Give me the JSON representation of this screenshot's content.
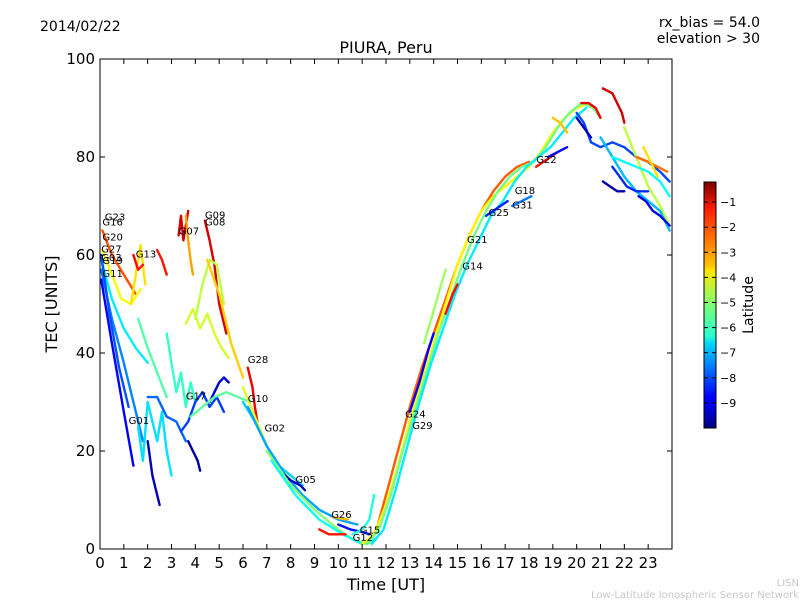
{
  "header": {
    "date": "2014/02/22",
    "bias": "rx_bias = 54.0",
    "elevation": "elevation > 30"
  },
  "footer": {
    "line1": "LISN",
    "line2": "Low-Latitude Ionospheric Sensor Network"
  },
  "chart_data": {
    "type": "line",
    "title": "PIURA, Peru",
    "xlabel": "Time [UT]",
    "ylabel": "TEC [UNITS]",
    "xlim": [
      0,
      24
    ],
    "ylim": [
      0,
      100
    ],
    "xticks": [
      "0",
      "1",
      "2",
      "3",
      "4",
      "5",
      "6",
      "7",
      "8",
      "9",
      "10",
      "11",
      "12",
      "13",
      "14",
      "15",
      "16",
      "17",
      "18",
      "19",
      "20",
      "21",
      "22",
      "23"
    ],
    "yticks": [
      "0",
      "20",
      "40",
      "60",
      "80",
      "100"
    ],
    "grid": false,
    "colorbar": {
      "label": "Latitude",
      "ticks": [
        "−1",
        "−2",
        "−3",
        "−4",
        "−5",
        "−6",
        "−7",
        "−8",
        "−9"
      ],
      "range": [
        -10,
        -0.2
      ],
      "colormap": "jet"
    },
    "satellite_labels": [
      {
        "name": "G23",
        "x": 0.2,
        "y": 67
      },
      {
        "name": "G16",
        "x": 0.1,
        "y": 66
      },
      {
        "name": "G20",
        "x": 0.1,
        "y": 63
      },
      {
        "name": "G27",
        "x": 0.05,
        "y": 60.5
      },
      {
        "name": "G13",
        "x": 1.5,
        "y": 59.5
      },
      {
        "name": "G03",
        "x": 0.05,
        "y": 58.8
      },
      {
        "name": "G19",
        "x": 0.1,
        "y": 58.2
      },
      {
        "name": "G11",
        "x": 0.1,
        "y": 55.5
      },
      {
        "name": "G09",
        "x": 4.4,
        "y": 67.5
      },
      {
        "name": "G08",
        "x": 4.4,
        "y": 66
      },
      {
        "name": "G07",
        "x": 3.3,
        "y": 64.2
      },
      {
        "name": "G28",
        "x": 6.2,
        "y": 38
      },
      {
        "name": "G17",
        "x": 3.6,
        "y": 30.5
      },
      {
        "name": "G10",
        "x": 6.2,
        "y": 30
      },
      {
        "name": "G01",
        "x": 1.2,
        "y": 25.5
      },
      {
        "name": "G02",
        "x": 6.9,
        "y": 24
      },
      {
        "name": "G05",
        "x": 8.2,
        "y": 13.5
      },
      {
        "name": "G26",
        "x": 9.7,
        "y": 6.3
      },
      {
        "name": "G15",
        "x": 10.9,
        "y": 3.2
      },
      {
        "name": "G12",
        "x": 10.6,
        "y": 1.6
      },
      {
        "name": "G24",
        "x": 12.8,
        "y": 26.8
      },
      {
        "name": "G29",
        "x": 13.1,
        "y": 24.5
      },
      {
        "name": "G14",
        "x": 15.2,
        "y": 57
      },
      {
        "name": "G21",
        "x": 15.4,
        "y": 62.5
      },
      {
        "name": "G25",
        "x": 16.3,
        "y": 68
      },
      {
        "name": "G31",
        "x": 17.3,
        "y": 69.5
      },
      {
        "name": "G18",
        "x": 17.4,
        "y": 72.5
      },
      {
        "name": "G22",
        "x": 18.3,
        "y": 78.8
      }
    ],
    "series": [
      {
        "lat": -2.2,
        "x": [
          0.1,
          0.5,
          1.0,
          1.5
        ],
        "y": [
          65,
          60,
          56,
          52
        ]
      },
      {
        "lat": -4.0,
        "x": [
          0.1,
          0.5,
          0.9,
          1.3,
          1.7
        ],
        "y": [
          61,
          56,
          51,
          50,
          53
        ]
      },
      {
        "lat": -6.5,
        "x": [
          0.05,
          0.5,
          1.0,
          1.5,
          2.0
        ],
        "y": [
          59,
          51,
          45,
          41,
          38
        ]
      },
      {
        "lat": -7.5,
        "x": [
          0.05,
          0.5,
          1.0,
          1.5,
          1.8
        ],
        "y": [
          57,
          47,
          38,
          28,
          22
        ]
      },
      {
        "lat": -8.8,
        "x": [
          0.05,
          0.5,
          1.0,
          1.4
        ],
        "y": [
          55,
          42,
          28,
          17
        ]
      },
      {
        "lat": -8.0,
        "x": [
          0.05,
          0.4,
          0.8,
          1.2
        ],
        "y": [
          60,
          48,
          37,
          29
        ]
      },
      {
        "lat": -3.6,
        "x": [
          1.3,
          1.5,
          1.7,
          1.9
        ],
        "y": [
          50,
          56,
          62,
          54
        ]
      },
      {
        "lat": -1.5,
        "x": [
          1.4,
          1.6,
          1.8
        ],
        "y": [
          60,
          57,
          58
        ]
      },
      {
        "lat": -1.6,
        "x": [
          2.4,
          2.6,
          2.8
        ],
        "y": [
          61,
          59,
          56
        ]
      },
      {
        "lat": -5.5,
        "x": [
          1.6,
          2.0,
          2.4,
          2.8
        ],
        "y": [
          47,
          41,
          36,
          31
        ]
      },
      {
        "lat": -6.6,
        "x": [
          1.6,
          1.8,
          2.0,
          2.2,
          2.4,
          2.6,
          2.8,
          3.0
        ],
        "y": [
          25,
          18,
          30,
          26,
          22,
          28,
          20,
          15
        ]
      },
      {
        "lat": -9.5,
        "x": [
          2.0,
          2.2,
          2.4,
          2.5
        ],
        "y": [
          22,
          15,
          11,
          9
        ]
      },
      {
        "lat": -7.8,
        "x": [
          2.0,
          2.4,
          2.8,
          3.2,
          3.6
        ],
        "y": [
          31,
          31,
          27,
          26,
          22
        ]
      },
      {
        "lat": -5.8,
        "x": [
          2.8,
          3.0,
          3.2,
          3.4,
          3.6,
          3.8,
          4.0
        ],
        "y": [
          44,
          38,
          32,
          36,
          29,
          34,
          30
        ]
      },
      {
        "lat": -1.0,
        "x": [
          3.3,
          3.4,
          3.5,
          3.6,
          3.7
        ],
        "y": [
          64,
          68,
          63,
          66,
          69
        ]
      },
      {
        "lat": -3.0,
        "x": [
          3.6,
          3.7,
          3.8,
          3.9
        ],
        "y": [
          68,
          63,
          59,
          56
        ]
      },
      {
        "lat": -4.3,
        "x": [
          3.6,
          3.9,
          4.2,
          4.5,
          4.8,
          5.1,
          5.4
        ],
        "y": [
          46,
          49,
          45,
          48,
          44,
          41,
          39
        ]
      },
      {
        "lat": -8.2,
        "x": [
          3.4,
          3.7,
          4.0,
          4.3,
          4.6,
          4.9,
          5.2
        ],
        "y": [
          24,
          26,
          30,
          32,
          29,
          31,
          28
        ]
      },
      {
        "lat": -9.7,
        "x": [
          3.7,
          3.9,
          4.1,
          4.2
        ],
        "y": [
          22,
          20,
          18,
          16
        ]
      },
      {
        "lat": -9.2,
        "x": [
          4.6,
          4.8,
          5.0,
          5.2,
          5.4
        ],
        "y": [
          30,
          32,
          34,
          35,
          34
        ]
      },
      {
        "lat": -1.0,
        "x": [
          4.4,
          4.6,
          4.8,
          5.0,
          5.3
        ],
        "y": [
          67,
          63,
          58,
          50,
          44
        ]
      },
      {
        "lat": -4.5,
        "x": [
          4.0,
          4.3,
          4.6,
          4.9,
          5.2
        ],
        "y": [
          47,
          54,
          59,
          58,
          50
        ]
      },
      {
        "lat": -3.4,
        "x": [
          4.5,
          5.0,
          5.5,
          6.0
        ],
        "y": [
          59,
          52,
          42,
          35
        ]
      },
      {
        "lat": -5.4,
        "x": [
          3.8,
          4.3,
          4.8,
          5.3,
          5.8,
          6.3
        ],
        "y": [
          27,
          29,
          31,
          32,
          31,
          30
        ]
      },
      {
        "lat": -1.3,
        "x": [
          6.2,
          6.4,
          6.5,
          6.6
        ],
        "y": [
          37,
          33,
          29,
          26
        ]
      },
      {
        "lat": -6.8,
        "x": [
          6.0,
          6.5,
          7.0,
          7.5,
          8.0,
          8.5
        ],
        "y": [
          30,
          26,
          21,
          17,
          15,
          13
        ]
      },
      {
        "lat": -4.2,
        "x": [
          6.0,
          6.5,
          7.0,
          7.5,
          8.0
        ],
        "y": [
          33,
          27,
          21,
          17,
          14
        ]
      },
      {
        "lat": -7.2,
        "x": [
          6.2,
          7.0,
          7.8,
          8.5,
          9.2,
          10.0,
          10.8
        ],
        "y": [
          29,
          21,
          15,
          11,
          8,
          6,
          5
        ]
      },
      {
        "lat": -9.3,
        "x": [
          7.5,
          8.0,
          8.4,
          8.6
        ],
        "y": [
          16,
          14,
          13,
          12
        ]
      },
      {
        "lat": -5.0,
        "x": [
          7.0,
          8.0,
          9.0,
          10.0,
          10.6,
          11.2,
          11.6
        ],
        "y": [
          20,
          13,
          8,
          4,
          2,
          1,
          2
        ]
      },
      {
        "lat": -6.2,
        "x": [
          7.2,
          8.2,
          9.2,
          10.2,
          11.0,
          11.5
        ],
        "y": [
          18,
          11,
          6,
          3,
          1,
          2
        ]
      },
      {
        "lat": -1.6,
        "x": [
          9.2,
          9.6,
          10.0,
          10.3
        ],
        "y": [
          4,
          3,
          3,
          3
        ]
      },
      {
        "lat": -3.2,
        "x": [
          9.8,
          10.1,
          10.4
        ],
        "y": [
          6.5,
          6.2,
          6.0
        ]
      },
      {
        "lat": -8.6,
        "x": [
          10.0,
          10.5,
          11.0,
          11.3
        ],
        "y": [
          5,
          4,
          3.5,
          3
        ]
      },
      {
        "lat": -6.0,
        "x": [
          10.6,
          11.0,
          11.3,
          11.5
        ],
        "y": [
          3,
          4,
          6,
          11
        ]
      },
      {
        "lat": -2.3,
        "x": [
          11.2,
          11.6,
          12.0,
          12.5,
          13.0,
          13.5,
          14.0,
          14.5,
          15.0,
          15.5,
          16.0,
          16.5,
          17.0,
          17.5,
          18.0
        ],
        "y": [
          1,
          4,
          11,
          20,
          29,
          37,
          44,
          51,
          58,
          64,
          69,
          73,
          76,
          78,
          79
        ]
      },
      {
        "lat": -3.8,
        "x": [
          11.0,
          11.5,
          12.0,
          12.5,
          13.0,
          13.5,
          14.0,
          14.5,
          15.0,
          15.5,
          16.0,
          16.5,
          17.0,
          17.5,
          18.0,
          18.5,
          19.0,
          19.5,
          20.0,
          20.5
        ],
        "y": [
          1,
          3,
          9,
          17,
          26,
          34,
          42,
          50,
          58,
          64,
          69,
          72,
          74,
          76,
          78,
          81,
          85,
          88,
          90,
          91
        ]
      },
      {
        "lat": -5.2,
        "x": [
          11.2,
          11.7,
          12.2,
          12.7,
          13.2,
          13.7,
          14.2,
          14.7,
          15.2,
          15.7,
          16.2,
          16.7,
          17.2,
          17.7,
          18.2,
          18.7,
          19.2,
          19.7,
          20.2,
          20.7,
          21.0
        ],
        "y": [
          1,
          4,
          11,
          20,
          28,
          36,
          44,
          51,
          58,
          64,
          69,
          73,
          76,
          78,
          79,
          82,
          86,
          89,
          91,
          90,
          88
        ]
      },
      {
        "lat": -6.5,
        "x": [
          11.4,
          11.9,
          12.4,
          12.9,
          13.4,
          13.9,
          14.4,
          14.9,
          15.4,
          15.9,
          16.4,
          16.9,
          17.4,
          17.9,
          18.4,
          18.9,
          19.4,
          19.9,
          20.4
        ],
        "y": [
          1,
          4,
          12,
          21,
          30,
          38,
          45,
          52,
          58,
          63,
          68,
          71,
          75,
          78,
          80,
          82,
          85,
          88,
          90
        ]
      },
      {
        "lat": -8.8,
        "x": [
          13.0,
          13.4,
          13.8,
          14.0
        ],
        "y": [
          28,
          34,
          41,
          44
        ]
      },
      {
        "lat": -4.8,
        "x": [
          13.6,
          13.9,
          14.2,
          14.5
        ],
        "y": [
          42,
          47,
          52,
          57
        ]
      },
      {
        "lat": -1.5,
        "x": [
          14.5,
          14.8,
          15.0
        ],
        "y": [
          48,
          52,
          54
        ]
      },
      {
        "lat": -8.5,
        "x": [
          16.2,
          16.5,
          16.8,
          17.1
        ],
        "y": [
          68,
          69,
          70,
          71
        ]
      },
      {
        "lat": -7.6,
        "x": [
          17.3,
          17.7,
          18.1
        ],
        "y": [
          70,
          71,
          72
        ]
      },
      {
        "lat": -1.6,
        "x": [
          18.3,
          18.6,
          18.9,
          19.2
        ],
        "y": [
          78,
          79,
          80,
          81
        ]
      },
      {
        "lat": -8.7,
        "x": [
          18.8,
          19.2,
          19.6
        ],
        "y": [
          80,
          81,
          82
        ]
      },
      {
        "lat": -3.3,
        "x": [
          19.0,
          19.3,
          19.6
        ],
        "y": [
          88,
          87,
          85
        ]
      },
      {
        "lat": -1.2,
        "x": [
          20.2,
          20.5,
          20.8,
          21.0
        ],
        "y": [
          91,
          91,
          90,
          88
        ]
      },
      {
        "lat": -8.1,
        "x": [
          20.0,
          20.3,
          20.6,
          21.0,
          21.5,
          22.0,
          22.5,
          23.0,
          23.5,
          23.9
        ],
        "y": [
          89,
          87,
          83,
          82,
          83,
          82,
          80,
          79,
          77,
          75
        ]
      },
      {
        "lat": -9.4,
        "x": [
          20.0,
          20.3,
          20.6
        ],
        "y": [
          88,
          86,
          84
        ]
      },
      {
        "lat": -1.0,
        "x": [
          21.1,
          21.5,
          21.9,
          22.0
        ],
        "y": [
          94,
          93,
          89,
          87
        ]
      },
      {
        "lat": -4.5,
        "x": [
          22.0,
          22.5,
          23.0,
          23.5,
          23.9
        ],
        "y": [
          86,
          80,
          74,
          70,
          66
        ]
      },
      {
        "lat": -7.0,
        "x": [
          21.0,
          21.5,
          22.0,
          22.5,
          23.0,
          23.5,
          23.9
        ],
        "y": [
          84,
          80,
          76,
          73,
          71,
          69,
          65
        ]
      },
      {
        "lat": -8.4,
        "x": [
          21.5,
          21.8,
          22.1,
          22.5,
          23.0
        ],
        "y": [
          78,
          76,
          74,
          73,
          73
        ]
      },
      {
        "lat": -9.6,
        "x": [
          21.1,
          21.4,
          21.7,
          22.0
        ],
        "y": [
          75,
          74,
          73,
          73
        ]
      },
      {
        "lat": -6.2,
        "x": [
          21.5,
          22.0,
          22.5,
          23.0,
          23.5,
          23.9
        ],
        "y": [
          80,
          79,
          78,
          77,
          75,
          72
        ]
      },
      {
        "lat": -2.5,
        "x": [
          22.5,
          23.0,
          23.4,
          23.8
        ],
        "y": [
          80,
          79,
          78,
          77
        ]
      },
      {
        "lat": -3.6,
        "x": [
          22.8,
          23.1,
          23.4
        ],
        "y": [
          82,
          79,
          76
        ]
      },
      {
        "lat": -9.0,
        "x": [
          22.6,
          22.9,
          23.2,
          23.5,
          23.9
        ],
        "y": [
          72,
          71,
          69,
          68,
          66
        ]
      }
    ]
  }
}
